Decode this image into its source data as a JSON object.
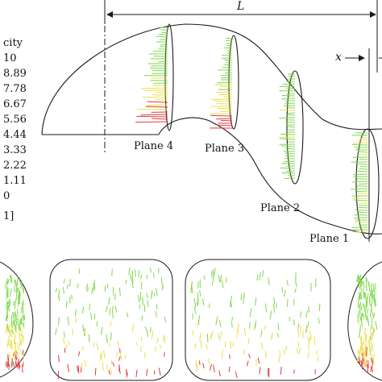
{
  "legend": {
    "title_fragment": "city",
    "values": [
      "10",
      "8.89",
      "7.78",
      "6.67",
      "5.56",
      "4.44",
      "3.33",
      "2.22",
      "1.11",
      "0"
    ],
    "unit_fragment": "1]"
  },
  "dimensions": {
    "length_label": "L",
    "offset_label": "x"
  },
  "planes": {
    "plane_4": "Plane 4",
    "plane_3": "Plane 3",
    "plane_2": "Plane 2",
    "plane_1": "Plane 1"
  },
  "colors": {
    "outline": "#1a1a1a",
    "vector_low": "#7fd84a",
    "vector_mid": "#e8e04a",
    "vector_high": "#e23a3a"
  }
}
